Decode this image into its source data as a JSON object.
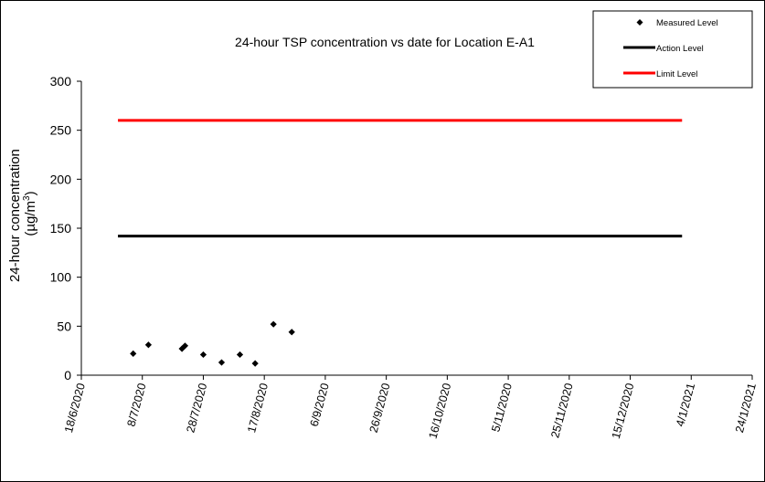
{
  "chart_data": {
    "type": "scatter",
    "title": "24-hour TSP concentration vs date for Location E-A1",
    "ylabel_line1": "24-hour concentration",
    "ylabel_line2": "(µg/m",
    "ylabel_sup": "3",
    "ylabel_close": ")",
    "ylim": [
      0,
      300
    ],
    "yticks": [
      0,
      50,
      100,
      150,
      200,
      250,
      300
    ],
    "xlim": [
      "2020-06-18",
      "2021-01-24"
    ],
    "xticks": [
      {
        "date": "2020-06-18",
        "label": "18/6/2020"
      },
      {
        "date": "2020-07-08",
        "label": "8/7/2020"
      },
      {
        "date": "2020-07-28",
        "label": "28/7/2020"
      },
      {
        "date": "2020-08-17",
        "label": "17/8/2020"
      },
      {
        "date": "2020-09-06",
        "label": "6/9/2020"
      },
      {
        "date": "2020-09-26",
        "label": "26/9/2020"
      },
      {
        "date": "2020-10-16",
        "label": "16/10/2020"
      },
      {
        "date": "2020-11-05",
        "label": "5/11/2020"
      },
      {
        "date": "2020-11-25",
        "label": "25/11/2020"
      },
      {
        "date": "2020-12-15",
        "label": "15/12/2020"
      },
      {
        "date": "2021-01-04",
        "label": "4/1/2021"
      },
      {
        "date": "2021-01-24",
        "label": "24/1/2021"
      }
    ],
    "series": [
      {
        "name": "Measured Level",
        "type": "scatter",
        "color": "#000000",
        "marker": "diamond",
        "points": [
          {
            "x": "2020-07-05",
            "y": 22
          },
          {
            "x": "2020-07-10",
            "y": 31
          },
          {
            "x": "2020-07-21",
            "y": 27
          },
          {
            "x": "2020-07-22",
            "y": 30
          },
          {
            "x": "2020-07-28",
            "y": 21
          },
          {
            "x": "2020-08-03",
            "y": 13
          },
          {
            "x": "2020-08-09",
            "y": 21
          },
          {
            "x": "2020-08-14",
            "y": 12
          },
          {
            "x": "2020-08-20",
            "y": 52
          },
          {
            "x": "2020-08-26",
            "y": 44
          }
        ]
      },
      {
        "name": "Action Level",
        "type": "line",
        "color": "#000000",
        "points": [
          {
            "x": "2020-06-30",
            "y": 142
          },
          {
            "x": "2021-01-01",
            "y": 142
          }
        ]
      },
      {
        "name": "Limit Level",
        "type": "line",
        "color": "#ff0000",
        "points": [
          {
            "x": "2020-06-30",
            "y": 260
          },
          {
            "x": "2021-01-01",
            "y": 260
          }
        ]
      }
    ],
    "legend_position": "top-right",
    "grid": false
  }
}
